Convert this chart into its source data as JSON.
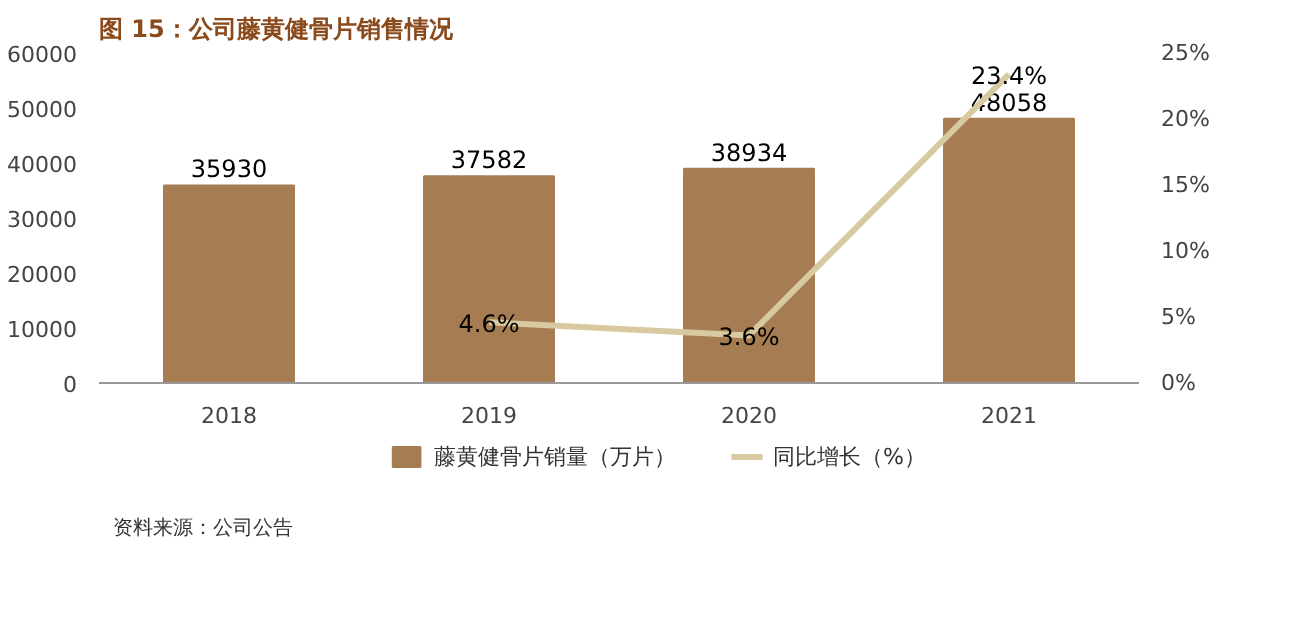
{
  "chart_data": {
    "type": "bar",
    "title": "图 15：公司藤黄健骨片销售情况",
    "categories": [
      "2018",
      "2019",
      "2020",
      "2021"
    ],
    "series": [
      {
        "name": "藤黄健骨片销量（万片）",
        "color": "#a67c52",
        "values": [
          35930,
          37582,
          38934,
          48058
        ],
        "value_labels": [
          "35930",
          "37582",
          "38934",
          "48058"
        ]
      },
      {
        "name": "同比增长（%）",
        "type": "line",
        "axis": "y2",
        "color": "#d8c9a0",
        "values": [
          null,
          4.6,
          3.6,
          23.4
        ],
        "value_labels": [
          null,
          "4.6%",
          "3.6%",
          "23.4%"
        ]
      }
    ],
    "ylim": [
      0,
      60000
    ],
    "yticks": [
      0,
      10000,
      20000,
      30000,
      40000,
      50000,
      60000
    ],
    "y2lim": [
      0,
      25
    ],
    "y2ticks": [
      {
        "value": 0,
        "label": "0%"
      },
      {
        "value": 5,
        "label": "5%"
      },
      {
        "value": 10,
        "label": "10%"
      },
      {
        "value": 15,
        "label": "15%"
      },
      {
        "value": 20,
        "label": "20%"
      },
      {
        "value": 25,
        "label": "25%"
      }
    ],
    "grid": false,
    "legend": "bottom",
    "marker": "none",
    "line_style": "solid",
    "annotations": [
      "资料来源：公司公告"
    ]
  }
}
